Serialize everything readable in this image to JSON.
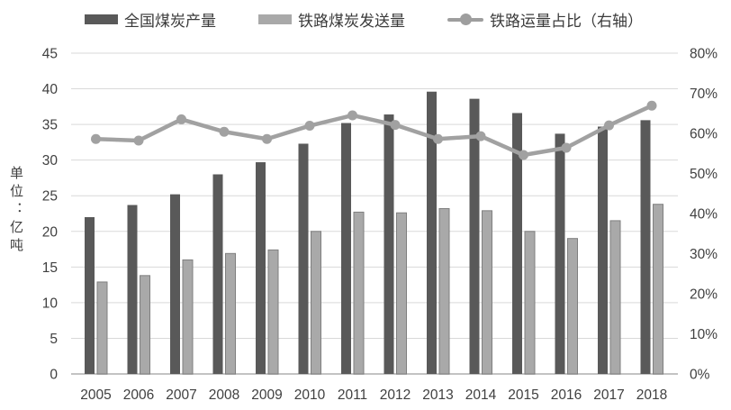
{
  "legend": {
    "items": [
      {
        "label": "全国煤炭产量",
        "marker": "bar-swatch-dark"
      },
      {
        "label": "铁路煤炭发送量",
        "marker": "bar-swatch-light"
      },
      {
        "label": "铁路运量占比（右轴）",
        "marker": "line-with-dot"
      }
    ]
  },
  "y_axis_title": "单位：亿吨",
  "colors": {
    "production_bar": "#595959",
    "railway_bar": "#a9a9a9",
    "railway_bar_border": "#7f7f7f",
    "share_line": "#a1a1a1",
    "gridline": "#d9d9d9",
    "axis_line": "#c3c3c3",
    "text": "#404040"
  },
  "chart_data": {
    "type": "combo-bar-line",
    "title": "",
    "categories": [
      "2005",
      "2006",
      "2007",
      "2008",
      "2009",
      "2010",
      "2011",
      "2012",
      "2013",
      "2014",
      "2015",
      "2016",
      "2017",
      "2018"
    ],
    "series": [
      {
        "name": "全国煤炭产量",
        "type": "bar",
        "axis": "left",
        "color": "#595959",
        "values": [
          22.0,
          23.7,
          25.2,
          28.0,
          29.7,
          32.3,
          35.2,
          36.4,
          39.6,
          38.6,
          36.6,
          33.7,
          34.7,
          35.6
        ]
      },
      {
        "name": "铁路煤炭发送量",
        "type": "bar",
        "axis": "left",
        "color": "#a9a9a9",
        "border": "#7f7f7f",
        "values": [
          12.9,
          13.8,
          16.0,
          16.9,
          17.4,
          20.0,
          22.7,
          22.6,
          23.2,
          22.9,
          20.0,
          19.0,
          21.5,
          23.8
        ]
      },
      {
        "name": "铁路运量占比（右轴）",
        "type": "line",
        "axis": "right",
        "color": "#a1a1a1",
        "values": [
          58.6,
          58.2,
          63.5,
          60.4,
          58.6,
          61.9,
          64.5,
          62.1,
          58.6,
          59.3,
          54.6,
          56.4,
          62.0,
          66.9
        ]
      }
    ],
    "left_axis": {
      "title": "单位：亿吨",
      "min": 0,
      "max": 45,
      "step": 5
    },
    "right_axis": {
      "min": 0,
      "max": 80,
      "step": 10,
      "format": "percent"
    },
    "grid": true,
    "legend_position": "top"
  }
}
